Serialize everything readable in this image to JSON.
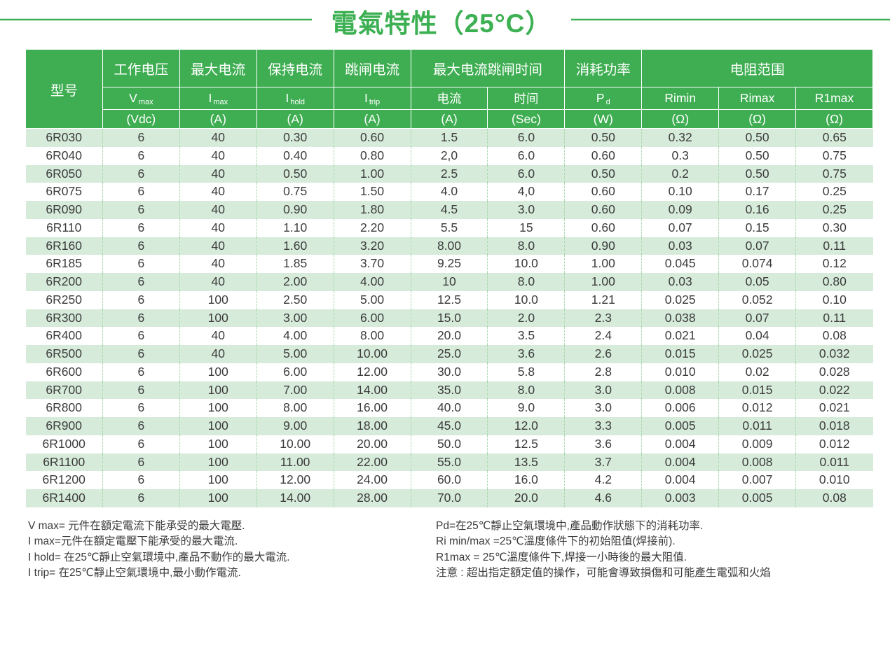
{
  "page": {
    "title": "電氣特性（25°C）"
  },
  "colors": {
    "accent_green": "#3fae52",
    "title_green": "#3cb052",
    "stripe_green": "#d6ebd9",
    "separator_dash": "#a9d8b0",
    "body_text": "#3c3c3c"
  },
  "table": {
    "model_header": "型号",
    "groups": [
      {
        "label": "工作电压",
        "span": 1
      },
      {
        "label": "最大电流",
        "span": 1
      },
      {
        "label": "保持电流",
        "span": 1
      },
      {
        "label": "跳闸电流",
        "span": 1
      },
      {
        "label": "最大电流跳闸时间",
        "span": 2
      },
      {
        "label": "消耗功率",
        "span": 1
      },
      {
        "label": "电阻范围",
        "span": 3
      }
    ],
    "symbols": [
      {
        "main": "V",
        "sub": "max"
      },
      {
        "main": "I",
        "sub": "max"
      },
      {
        "main": "I",
        "sub": "hold"
      },
      {
        "main": "I",
        "sub": "trip"
      },
      {
        "main": "电流"
      },
      {
        "main": "时间"
      },
      {
        "main": "P",
        "sub": "d"
      },
      {
        "main": "Rimin"
      },
      {
        "main": "Rimax"
      },
      {
        "main": "R1max"
      }
    ],
    "units": [
      "(Vdc)",
      "(A)",
      "(A)",
      "(A)",
      "(A)",
      "(Sec)",
      "(W)",
      "(Ω)",
      "(Ω)",
      "(Ω)"
    ],
    "rows": [
      [
        "6R030",
        "6",
        "40",
        "0.30",
        "0.60",
        "1.5",
        "6.0",
        "0.50",
        "0.32",
        "0.50",
        "0.65"
      ],
      [
        "6R040",
        "6",
        "40",
        "0.40",
        "0.80",
        "2,0",
        "6.0",
        "0.60",
        "0.3",
        "0.50",
        "0.75"
      ],
      [
        "6R050",
        "6",
        "40",
        "0.50",
        "1.00",
        "2.5",
        "6.0",
        "0.50",
        "0.2",
        "0.50",
        "0.75"
      ],
      [
        "6R075",
        "6",
        "40",
        "0.75",
        "1.50",
        "4.0",
        "4,0",
        "0.60",
        "0.10",
        "0.17",
        "0.25"
      ],
      [
        "6R090",
        "6",
        "40",
        "0.90",
        "1.80",
        "4.5",
        "3.0",
        "0.60",
        "0.09",
        "0.16",
        "0.25"
      ],
      [
        "6R110",
        "6",
        "40",
        "1.10",
        "2.20",
        "5.5",
        "15",
        "0.60",
        "0.07",
        "0.15",
        "0.30"
      ],
      [
        "6R160",
        "6",
        "40",
        "1.60",
        "3.20",
        "8.00",
        "8.0",
        "0.90",
        "0.03",
        "0.07",
        "0.11"
      ],
      [
        "6R185",
        "6",
        "40",
        "1.85",
        "3.70",
        "9.25",
        "10.0",
        "1.00",
        "0.045",
        "0.074",
        "0.12"
      ],
      [
        "6R200",
        "6",
        "40",
        "2.00",
        "4.00",
        "10",
        "8.0",
        "1.00",
        "0.03",
        "0.05",
        "0.80"
      ],
      [
        "6R250",
        "6",
        "100",
        "2.50",
        "5.00",
        "12.5",
        "10.0",
        "1.21",
        "0.025",
        "0.052",
        "0.10"
      ],
      [
        "6R300",
        "6",
        "100",
        "3.00",
        "6.00",
        "15.0",
        "2.0",
        "2.3",
        "0.038",
        "0.07",
        "0.11"
      ],
      [
        "6R400",
        "6",
        "40",
        "4.00",
        "8.00",
        "20.0",
        "3.5",
        "2.4",
        "0.021",
        "0.04",
        "0.08"
      ],
      [
        "6R500",
        "6",
        "40",
        "5.00",
        "10.00",
        "25.0",
        "3.6",
        "2.6",
        "0.015",
        "0.025",
        "0.032"
      ],
      [
        "6R600",
        "6",
        "100",
        "6.00",
        "12.00",
        "30.0",
        "5.8",
        "2.8",
        "0.010",
        "0.02",
        "0.028"
      ],
      [
        "6R700",
        "6",
        "100",
        "7.00",
        "14.00",
        "35.0",
        "8.0",
        "3.0",
        "0.008",
        "0.015",
        "0.022"
      ],
      [
        "6R800",
        "6",
        "100",
        "8.00",
        "16.00",
        "40.0",
        "9.0",
        "3.0",
        "0.006",
        "0.012",
        "0.021"
      ],
      [
        "6R900",
        "6",
        "100",
        "9.00",
        "18.00",
        "45.0",
        "12.0",
        "3.3",
        "0.005",
        "0.011",
        "0.018"
      ],
      [
        "6R1000",
        "6",
        "100",
        "10.00",
        "20.00",
        "50.0",
        "12.5",
        "3.6",
        "0.004",
        "0.009",
        "0.012"
      ],
      [
        "6R1100",
        "6",
        "100",
        "11.00",
        "22.00",
        "55.0",
        "13.5",
        "3.7",
        "0.004",
        "0.008",
        "0.011"
      ],
      [
        "6R1200",
        "6",
        "100",
        "12.00",
        "24.00",
        "60.0",
        "16.0",
        "4.2",
        "0.004",
        "0.007",
        "0.010"
      ],
      [
        "6R1400",
        "6",
        "100",
        "14.00",
        "28.00",
        "70.0",
        "20.0",
        "4.6",
        "0.003",
        "0.005",
        "0.08"
      ]
    ]
  },
  "footnotes": {
    "left": [
      "V max= 元件在額定電流下能承受的最大電壓.",
      "I max=元件在額定電壓下能承受的最大電流.",
      "I hold= 在25℃靜止空氣環境中,產品不動作的最大電流.",
      "I trip= 在25℃靜止空氣環境中,最小動作電流."
    ],
    "right": [
      "Pd=在25℃靜止空氣環境中,產品動作狀態下的消耗功率.",
      "Ri min/max  =25℃溫度條件下的初始阻值(焊接前).",
      "R1max  = 25℃溫度條件下,焊接一小時後的最大阻值.",
      "注意 : 超出指定額定值的操作，可能會導致損傷和可能產生電弧和火焰"
    ]
  }
}
